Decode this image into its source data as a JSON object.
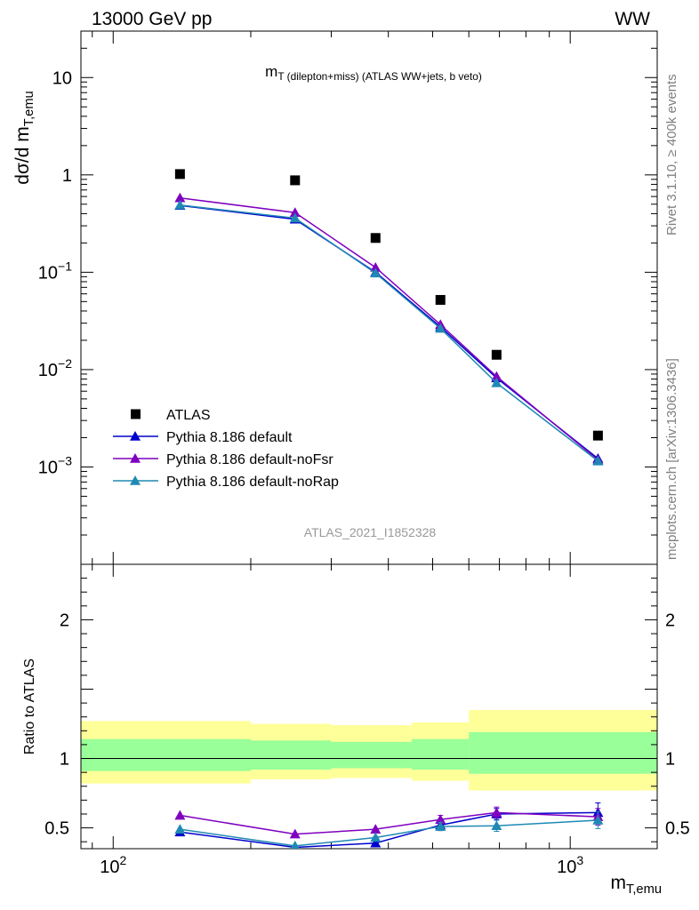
{
  "header": {
    "left": "13000 GeV pp",
    "right": "WW"
  },
  "side_labels": {
    "rivet": "Rivet 3.1.10, ≥ 400k events",
    "mcplots": "mcplots.cern.ch [arXiv:1306.3436]"
  },
  "chart_data": [
    {
      "type": "scatter",
      "title": "m_T (dilepton+miss) (ATLAS WW+jets, b veto)",
      "ylabel": "dσ/d m_T,emu",
      "xlabel": "",
      "xscale": "log",
      "yscale": "log",
      "xlim": [
        85,
        1550
      ],
      "ylim": [
        0.0001,
        30
      ],
      "watermark": "ATLAS_2021_I1852328",
      "x_ticks": [
        "10^2",
        "10^3"
      ],
      "y_ticks": [
        "10^-3",
        "10^-2",
        "10^-1",
        "1",
        "10"
      ],
      "x": [
        140,
        250,
        375,
        520,
        690,
        1150
      ],
      "series": [
        {
          "name": "ATLAS",
          "color": "#000000",
          "marker": "square",
          "line": false,
          "values": [
            1.02,
            0.88,
            0.225,
            0.052,
            0.0142,
            0.0021
          ]
        },
        {
          "name": "Pythia 8.186 default",
          "color": "#0000cc",
          "marker": "triangle",
          "line": true,
          "values": [
            0.485,
            0.35,
            0.1,
            0.0275,
            0.0082,
            0.00122
          ]
        },
        {
          "name": "Pythia 8.186 default-noFsr",
          "color": "#7f00bf",
          "marker": "triangle",
          "line": true,
          "values": [
            0.58,
            0.41,
            0.112,
            0.029,
            0.0085,
            0.00118
          ]
        },
        {
          "name": "Pythia 8.186 default-noRap",
          "color": "#1f89b4",
          "marker": "triangle",
          "line": true,
          "values": [
            0.49,
            0.36,
            0.098,
            0.0265,
            0.0073,
            0.00115
          ]
        }
      ]
    },
    {
      "type": "line",
      "ylabel": "Ratio to ATLAS",
      "xlabel": "m_T,emu",
      "xscale": "log",
      "xlim": [
        85,
        1550
      ],
      "ylim": [
        0.35,
        2.4
      ],
      "x_ticks": [
        "10^2",
        "10^3"
      ],
      "y_ticks": [
        "0.5",
        "1",
        "2"
      ],
      "bands": {
        "edges": [
          85,
          200,
          300,
          450,
          600,
          1550
        ],
        "outer_color": "#ffff99",
        "inner_color": "#99ff99",
        "outer_lo": [
          0.82,
          0.85,
          0.86,
          0.84,
          0.77
        ],
        "outer_hi": [
          1.27,
          1.25,
          1.24,
          1.26,
          1.35
        ],
        "inner_lo": [
          0.91,
          0.92,
          0.93,
          0.92,
          0.89
        ],
        "inner_hi": [
          1.14,
          1.13,
          1.12,
          1.14,
          1.19
        ]
      },
      "x": [
        140,
        250,
        375,
        520,
        690,
        1150
      ],
      "series": [
        {
          "name": "Pythia 8.186 default",
          "color": "#0000cc",
          "values": [
            0.47,
            0.36,
            0.39,
            0.52,
            0.6,
            0.61
          ],
          "err": [
            0,
            0,
            0,
            0.02,
            0.04,
            0.07
          ]
        },
        {
          "name": "Pythia 8.186 default-noFsr",
          "color": "#7f00bf",
          "values": [
            0.59,
            0.455,
            0.49,
            0.56,
            0.61,
            0.58
          ],
          "err": [
            0,
            0,
            0,
            0.03,
            0.04,
            0.06
          ]
        },
        {
          "name": "Pythia 8.186 default-noRap",
          "color": "#1f89b4",
          "values": [
            0.49,
            0.37,
            0.43,
            0.51,
            0.515,
            0.555
          ],
          "err": [
            0,
            0,
            0,
            0.03,
            0.04,
            0.06
          ]
        }
      ]
    }
  ]
}
